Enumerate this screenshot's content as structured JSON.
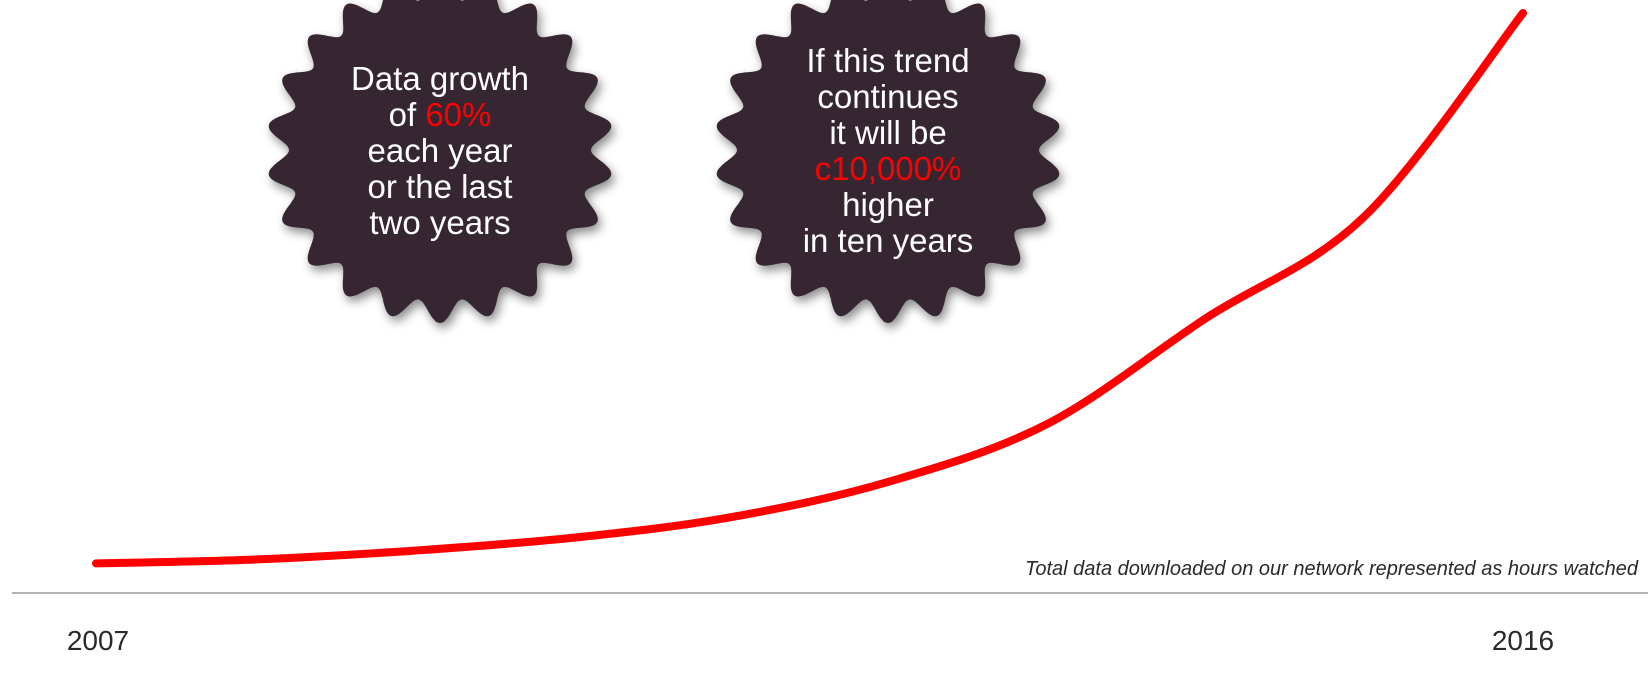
{
  "chart_data": {
    "type": "line",
    "x_ticks": [
      "2007",
      "2016"
    ],
    "xlim": [
      2007,
      2016
    ],
    "series": [
      {
        "color": "#ff0000",
        "points": [
          [
            2007,
            1.0
          ],
          [
            2008,
            1.7
          ],
          [
            2009,
            3.3
          ],
          [
            2010,
            5.6
          ],
          [
            2011,
            9.3
          ],
          [
            2012,
            15.7
          ],
          [
            2013,
            26.1
          ],
          [
            2014,
            45.1
          ],
          [
            2015,
            63.4
          ],
          [
            2016,
            100.0
          ]
        ]
      }
    ],
    "ylim": [
      0,
      100
    ],
    "grid": false,
    "caption": "Total data downloaded on our network represented as hours watched"
  },
  "badges": [
    {
      "lines": [
        [
          {
            "t": "Data growth"
          }
        ],
        [
          {
            "t": "of "
          },
          {
            "t": "60%",
            "hl": true
          }
        ],
        [
          {
            "t": "each year"
          }
        ],
        [
          {
            "t": "or the last"
          }
        ],
        [
          {
            "t": "two years"
          }
        ]
      ]
    },
    {
      "lines": [
        [
          {
            "t": "If this trend"
          }
        ],
        [
          {
            "t": "continues"
          }
        ],
        [
          {
            "t": "it will be"
          }
        ],
        [
          {
            "t": "c10,000%",
            "hl": true
          }
        ],
        [
          {
            "t": "higher"
          }
        ],
        [
          {
            "t": "in ten years"
          }
        ]
      ]
    }
  ],
  "colors": {
    "line": "#ff0000",
    "badge": "#342632",
    "highlight": "#ff0000",
    "axis": "#9a9a9a",
    "text": "#2a2a2a"
  }
}
